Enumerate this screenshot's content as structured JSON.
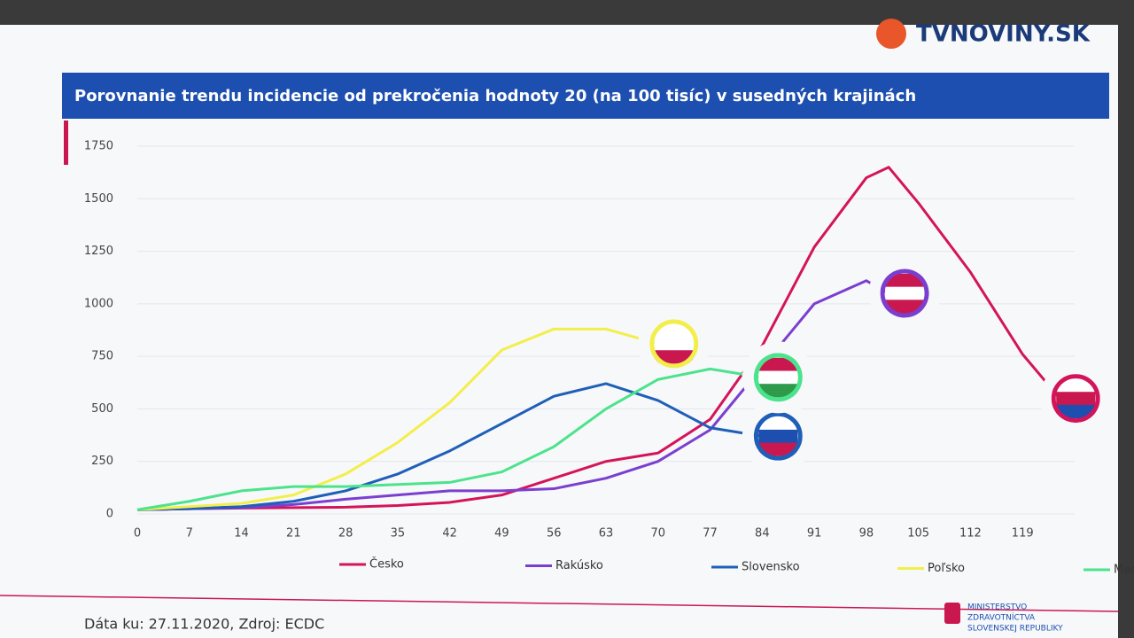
{
  "chart_data": {
    "type": "line",
    "title": "Porovnanie trendu incidencie od prekročenia hodnoty 20 (na 100 tisíc) v susedných krajinách",
    "source": "Dáta ku: 27.11.2020, Zdroj: ECDC",
    "x": [
      0,
      7,
      14,
      21,
      28,
      35,
      42,
      49,
      56,
      63,
      70,
      77,
      84,
      91,
      98,
      101,
      105,
      112,
      119,
      124
    ],
    "series": [
      {
        "name": "Česko",
        "color": "#d4145a",
        "values": [
          20,
          25,
          28,
          30,
          32,
          40,
          55,
          90,
          170,
          250,
          290,
          450,
          800,
          1270,
          1600,
          1650,
          1480,
          1150,
          760,
          550
        ]
      },
      {
        "name": "Rakúsko",
        "color": "#7b3fd0",
        "values": [
          20,
          25,
          30,
          45,
          70,
          90,
          110,
          110,
          120,
          170,
          250,
          400,
          700,
          1000,
          1110,
          1050,
          null,
          null,
          null,
          null
        ]
      },
      {
        "name": "Slovensko",
        "color": "#1f5fb8",
        "values": [
          20,
          25,
          35,
          60,
          110,
          190,
          300,
          430,
          560,
          620,
          540,
          410,
          370,
          null,
          null,
          null,
          null,
          null,
          null,
          null
        ]
      },
      {
        "name": "Poľsko",
        "color": "#f2ef4a",
        "values": [
          20,
          35,
          50,
          90,
          190,
          340,
          530,
          780,
          880,
          880,
          810,
          null,
          null,
          null,
          null,
          null,
          null,
          null,
          null,
          null
        ]
      },
      {
        "name": "Maďarsko",
        "color": "#4be38c",
        "values": [
          20,
          60,
          110,
          130,
          130,
          140,
          150,
          200,
          320,
          500,
          640,
          690,
          650,
          null,
          null,
          null,
          null,
          null,
          null,
          null
        ]
      }
    ],
    "xlim": [
      0,
      126
    ],
    "xticks": [
      0,
      7,
      14,
      21,
      28,
      35,
      42,
      49,
      56,
      63,
      70,
      77,
      84,
      91,
      98,
      105,
      112,
      119
    ],
    "ylim": [
      0,
      1750
    ],
    "yticks": [
      0,
      250,
      500,
      750,
      1000,
      1250,
      1500,
      1750
    ],
    "grid": true,
    "legend": "bottom"
  },
  "watermark": "TVNOVINY.SK",
  "logo_text": [
    "MINISTERSTVO",
    "ZDRAVOTNÍCTVA",
    "SLOVENSKEJ REPUBLIKY"
  ]
}
